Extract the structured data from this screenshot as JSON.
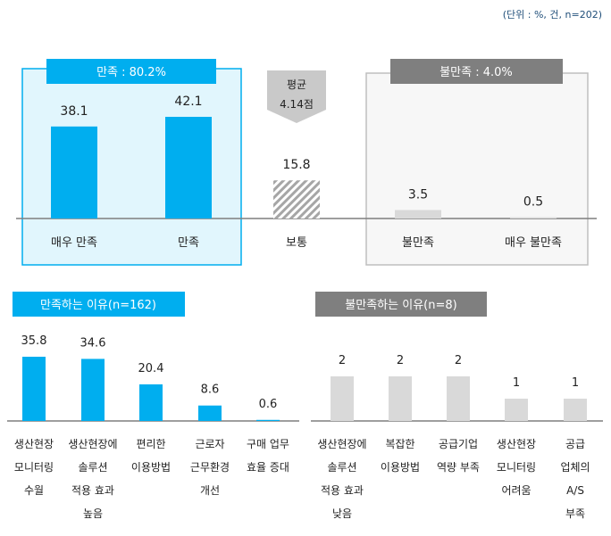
{
  "unit_note": "(단위 : %, 건, n=202)",
  "colors": {
    "blue": "#00aeef",
    "light_blue_bg": "#e1f6fd",
    "gray_header": "#7f7f7f",
    "light_gray_bar": "#d9d9d9",
    "hatch": "#a6a6a6"
  },
  "chart_data": [
    {
      "type": "bar",
      "title": "",
      "categories": [
        "매우 만족",
        "만족",
        "보통",
        "불만족",
        "매우 불만족"
      ],
      "values": [
        38.1,
        42.1,
        15.8,
        3.5,
        0.5
      ],
      "value_labels": [
        "38.1",
        "42.1",
        "15.8",
        "3.5",
        "0.5"
      ],
      "groups": [
        {
          "label": "만족 : 80.2%",
          "categories": [
            "매우 만족",
            "만족"
          ]
        },
        {
          "label": "불만족 : 4.0%",
          "categories": [
            "불만족",
            "매우 불만족"
          ]
        }
      ],
      "average": {
        "label": "평균",
        "value": "4.14점"
      },
      "ylim": [
        0,
        45
      ],
      "grid": false
    },
    {
      "type": "bar",
      "title": "만족하는 이유(n=162)",
      "categories": [
        [
          "생산현장",
          "모니터링",
          "수월"
        ],
        [
          "생산현장에",
          "솔루션",
          "적용 효과",
          "높음"
        ],
        [
          "편리한",
          "이용방법"
        ],
        [
          "근로자",
          "근무환경",
          "개선"
        ],
        [
          "구매 업무",
          "효율 증대"
        ]
      ],
      "values": [
        35.8,
        34.6,
        20.4,
        8.6,
        0.6
      ],
      "value_labels": [
        "35.8",
        "34.6",
        "20.4",
        "8.6",
        "0.6"
      ],
      "ylim": [
        0,
        40
      ],
      "grid": false
    },
    {
      "type": "bar",
      "title": "불만족하는 이유(n=8)",
      "categories": [
        [
          "생산현장에",
          "솔루션",
          "적용 효과",
          "낮음"
        ],
        [
          "복잡한",
          "이용방법"
        ],
        [
          "공급기업",
          "역량 부족"
        ],
        [
          "생산현장",
          "모니터링",
          "어려움"
        ],
        [
          "공급",
          "업체의",
          "A/S",
          "부족"
        ]
      ],
      "values": [
        2,
        2,
        2,
        1,
        1
      ],
      "value_labels": [
        "2",
        "2",
        "2",
        "1",
        "1"
      ],
      "ylim": [
        0,
        2.5
      ],
      "grid": false
    }
  ]
}
